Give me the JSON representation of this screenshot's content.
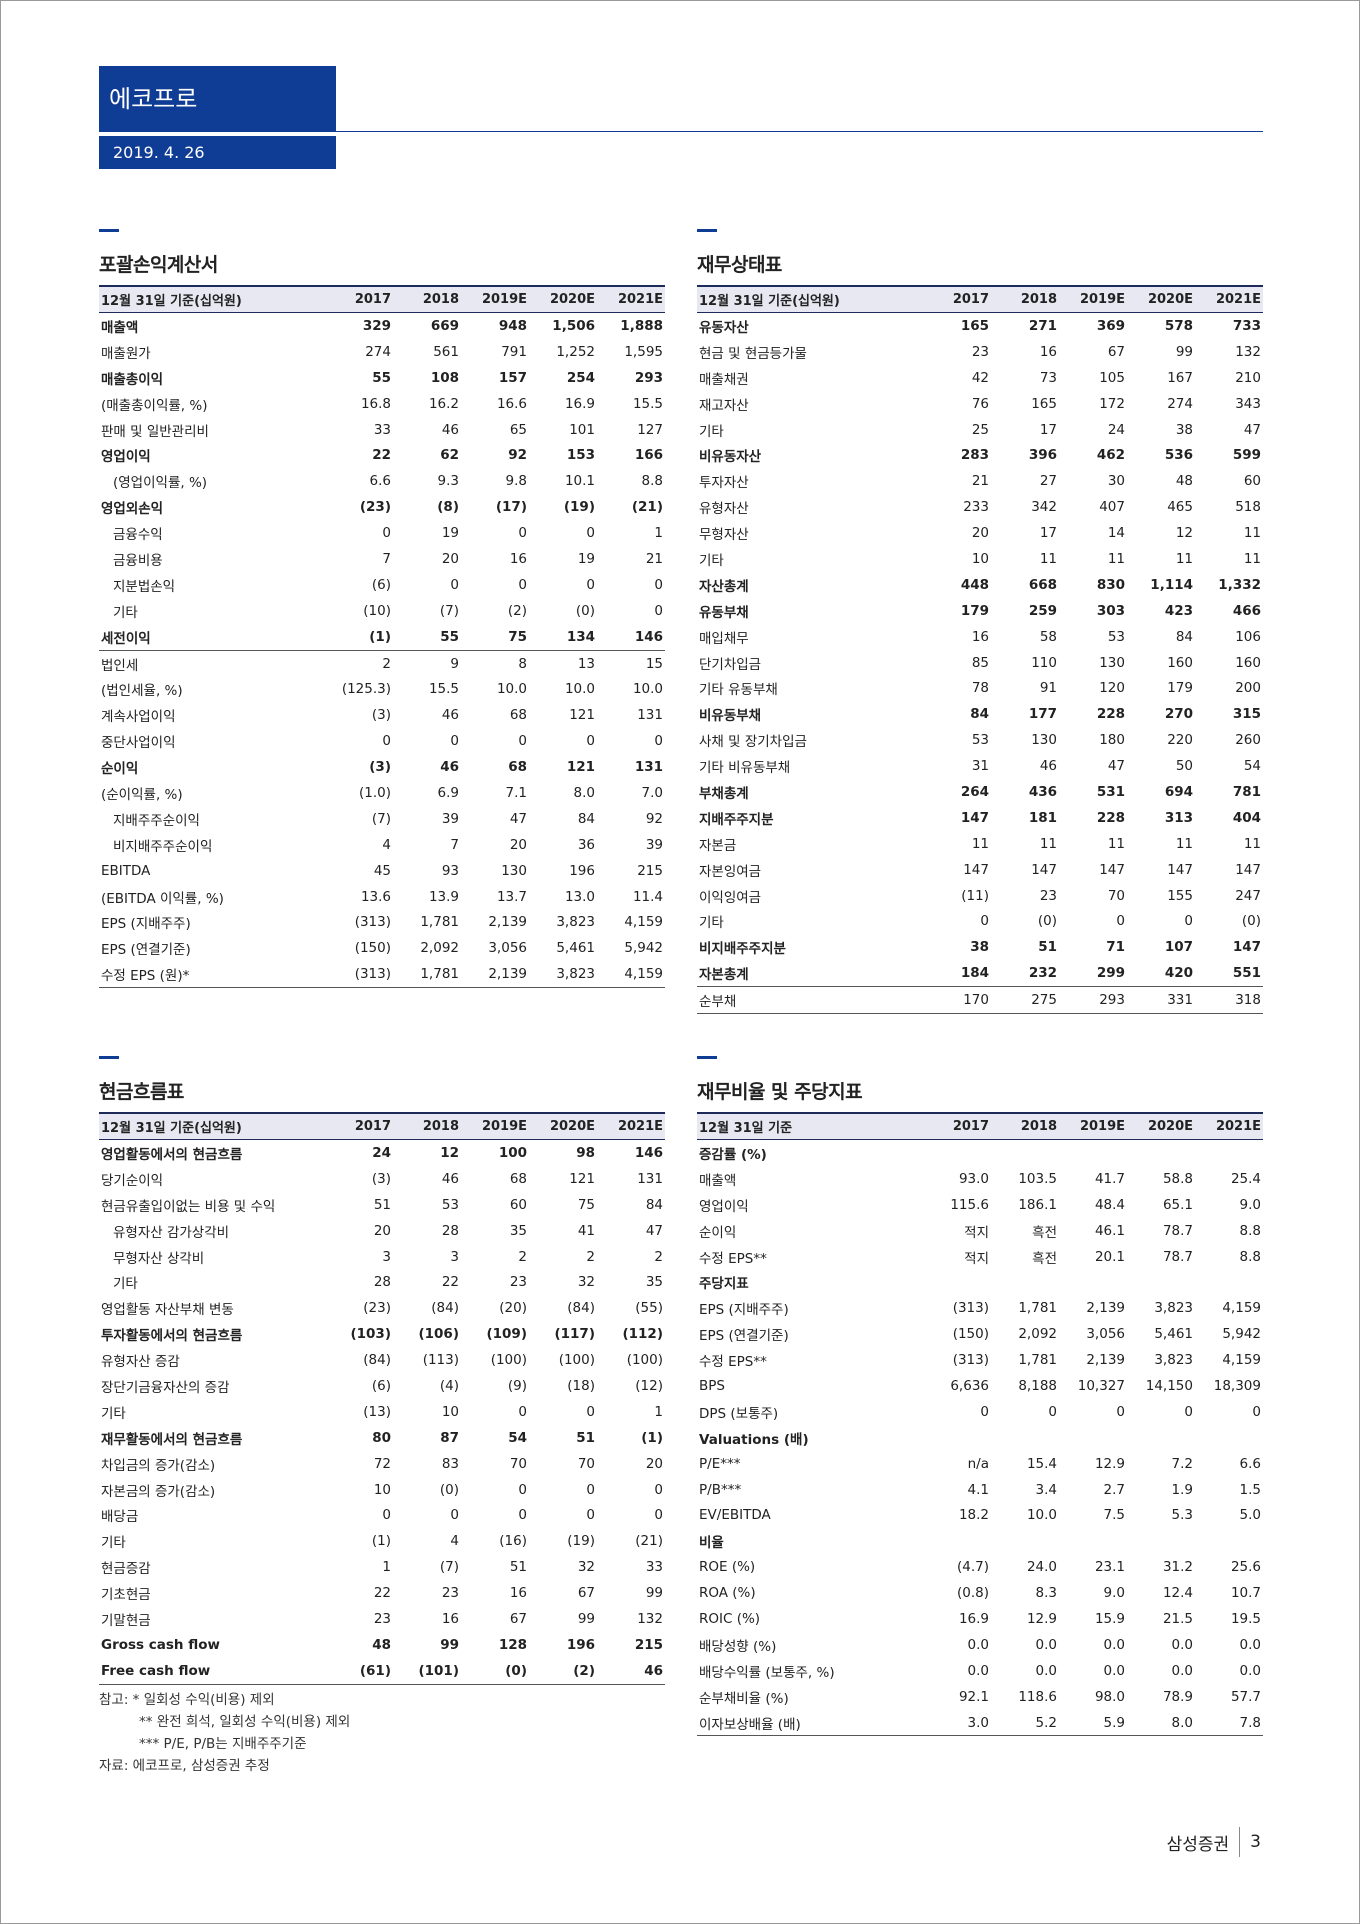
{
  "header": {
    "title": "에코프로",
    "date": "2019. 4. 26"
  },
  "tables": [
    {
      "title": "포괄손익계산서",
      "columns": [
        "12월 31일 기준(십억원)",
        "2017",
        "2018",
        "2019E",
        "2020E",
        "2021E"
      ],
      "rows": [
        {
          "label": "매출액",
          "values": [
            "329",
            "669",
            "948",
            "1,506",
            "1,888"
          ],
          "bold": true
        },
        {
          "label": "매출원가",
          "values": [
            "274",
            "561",
            "791",
            "1,252",
            "1,595"
          ]
        },
        {
          "label": "매출총이익",
          "values": [
            "55",
            "108",
            "157",
            "254",
            "293"
          ],
          "bold": true
        },
        {
          "label": "(매출총이익률, %)",
          "values": [
            "16.8",
            "16.2",
            "16.6",
            "16.9",
            "15.5"
          ]
        },
        {
          "label": "판매 및 일반관리비",
          "values": [
            "33",
            "46",
            "65",
            "101",
            "127"
          ]
        },
        {
          "label": "영업이익",
          "values": [
            "22",
            "62",
            "92",
            "153",
            "166"
          ],
          "bold": true
        },
        {
          "label": "(영업이익률, %)",
          "values": [
            "6.6",
            "9.3",
            "9.8",
            "10.1",
            "8.8"
          ],
          "indent": true
        },
        {
          "label": "영업외손익",
          "values": [
            "(23)",
            "(8)",
            "(17)",
            "(19)",
            "(21)"
          ],
          "bold": true
        },
        {
          "label": "금융수익",
          "values": [
            "0",
            "19",
            "0",
            "0",
            "1"
          ],
          "indent": true
        },
        {
          "label": "금융비용",
          "values": [
            "7",
            "20",
            "16",
            "19",
            "21"
          ],
          "indent": true
        },
        {
          "label": "지분법손익",
          "values": [
            "(6)",
            "0",
            "0",
            "0",
            "0"
          ],
          "indent": true
        },
        {
          "label": "기타",
          "values": [
            "(10)",
            "(7)",
            "(2)",
            "(0)",
            "0"
          ],
          "indent": true
        },
        {
          "label": "세전이익",
          "values": [
            "(1)",
            "55",
            "75",
            "134",
            "146"
          ],
          "bold": true
        },
        {
          "label": "법인세",
          "values": [
            "2",
            "9",
            "8",
            "13",
            "15"
          ],
          "rule": true
        },
        {
          "label": "(법인세율, %)",
          "values": [
            "(125.3)",
            "15.5",
            "10.0",
            "10.0",
            "10.0"
          ]
        },
        {
          "label": "계속사업이익",
          "values": [
            "(3)",
            "46",
            "68",
            "121",
            "131"
          ]
        },
        {
          "label": "중단사업이익",
          "values": [
            "0",
            "0",
            "0",
            "0",
            "0"
          ]
        },
        {
          "label": "순이익",
          "values": [
            "(3)",
            "46",
            "68",
            "121",
            "131"
          ],
          "bold": true
        },
        {
          "label": "(순이익률, %)",
          "values": [
            "(1.0)",
            "6.9",
            "7.1",
            "8.0",
            "7.0"
          ]
        },
        {
          "label": "지배주주순이익",
          "values": [
            "(7)",
            "39",
            "47",
            "84",
            "92"
          ],
          "indent": true
        },
        {
          "label": "비지배주주순이익",
          "values": [
            "4",
            "7",
            "20",
            "36",
            "39"
          ],
          "indent": true
        },
        {
          "label": "EBITDA",
          "values": [
            "45",
            "93",
            "130",
            "196",
            "215"
          ]
        },
        {
          "label": "(EBITDA 이익률, %)",
          "values": [
            "13.6",
            "13.9",
            "13.7",
            "13.0",
            "11.4"
          ]
        },
        {
          "label": "EPS (지배주주)",
          "values": [
            "(313)",
            "1,781",
            "2,139",
            "3,823",
            "4,159"
          ]
        },
        {
          "label": "EPS (연결기준)",
          "values": [
            "(150)",
            "2,092",
            "3,056",
            "5,461",
            "5,942"
          ]
        },
        {
          "label": "수정 EPS (원)*",
          "values": [
            "(313)",
            "1,781",
            "2,139",
            "3,823",
            "4,159"
          ]
        }
      ]
    },
    {
      "title": "재무상태표",
      "columns": [
        "12월 31일 기준(십억원)",
        "2017",
        "2018",
        "2019E",
        "2020E",
        "2021E"
      ],
      "rows": [
        {
          "label": "유동자산",
          "values": [
            "165",
            "271",
            "369",
            "578",
            "733"
          ],
          "bold": true
        },
        {
          "label": "현금 및 현금등가물",
          "values": [
            "23",
            "16",
            "67",
            "99",
            "132"
          ]
        },
        {
          "label": "매출채권",
          "values": [
            "42",
            "73",
            "105",
            "167",
            "210"
          ]
        },
        {
          "label": "재고자산",
          "values": [
            "76",
            "165",
            "172",
            "274",
            "343"
          ]
        },
        {
          "label": "기타",
          "values": [
            "25",
            "17",
            "24",
            "38",
            "47"
          ]
        },
        {
          "label": "비유동자산",
          "values": [
            "283",
            "396",
            "462",
            "536",
            "599"
          ],
          "bold": true
        },
        {
          "label": "투자자산",
          "values": [
            "21",
            "27",
            "30",
            "48",
            "60"
          ]
        },
        {
          "label": "유형자산",
          "values": [
            "233",
            "342",
            "407",
            "465",
            "518"
          ]
        },
        {
          "label": "무형자산",
          "values": [
            "20",
            "17",
            "14",
            "12",
            "11"
          ]
        },
        {
          "label": "기타",
          "values": [
            "10",
            "11",
            "11",
            "11",
            "11"
          ]
        },
        {
          "label": "자산총계",
          "values": [
            "448",
            "668",
            "830",
            "1,114",
            "1,332"
          ],
          "bold": true
        },
        {
          "label": "유동부채",
          "values": [
            "179",
            "259",
            "303",
            "423",
            "466"
          ],
          "bold": true
        },
        {
          "label": "매입채무",
          "values": [
            "16",
            "58",
            "53",
            "84",
            "106"
          ]
        },
        {
          "label": "단기차입금",
          "values": [
            "85",
            "110",
            "130",
            "160",
            "160"
          ]
        },
        {
          "label": "기타 유동부채",
          "values": [
            "78",
            "91",
            "120",
            "179",
            "200"
          ]
        },
        {
          "label": "비유동부채",
          "values": [
            "84",
            "177",
            "228",
            "270",
            "315"
          ],
          "bold": true
        },
        {
          "label": "사채 및 장기차입금",
          "values": [
            "53",
            "130",
            "180",
            "220",
            "260"
          ]
        },
        {
          "label": "기타 비유동부채",
          "values": [
            "31",
            "46",
            "47",
            "50",
            "54"
          ]
        },
        {
          "label": "부채총계",
          "values": [
            "264",
            "436",
            "531",
            "694",
            "781"
          ],
          "bold": true
        },
        {
          "label": "지배주주지분",
          "values": [
            "147",
            "181",
            "228",
            "313",
            "404"
          ],
          "bold": true
        },
        {
          "label": "자본금",
          "values": [
            "11",
            "11",
            "11",
            "11",
            "11"
          ]
        },
        {
          "label": "자본잉여금",
          "values": [
            "147",
            "147",
            "147",
            "147",
            "147"
          ]
        },
        {
          "label": "이익잉여금",
          "values": [
            "(11)",
            "23",
            "70",
            "155",
            "247"
          ]
        },
        {
          "label": "기타",
          "values": [
            "0",
            "(0)",
            "0",
            "0",
            "(0)"
          ]
        },
        {
          "label": "비지배주주지분",
          "values": [
            "38",
            "51",
            "71",
            "107",
            "147"
          ],
          "bold": true
        },
        {
          "label": "자본총계",
          "values": [
            "184",
            "232",
            "299",
            "420",
            "551"
          ],
          "bold": true
        },
        {
          "label": "순부채",
          "values": [
            "170",
            "275",
            "293",
            "331",
            "318"
          ],
          "rule": true
        }
      ]
    },
    {
      "title": "현금흐름표",
      "columns": [
        "12월 31일 기준(십억원)",
        "2017",
        "2018",
        "2019E",
        "2020E",
        "2021E"
      ],
      "rows": [
        {
          "label": "영업활동에서의 현금흐름",
          "values": [
            "24",
            "12",
            "100",
            "98",
            "146"
          ],
          "bold": true
        },
        {
          "label": "당기순이익",
          "values": [
            "(3)",
            "46",
            "68",
            "121",
            "131"
          ]
        },
        {
          "label": "현금유출입이없는 비용 및 수익",
          "values": [
            "51",
            "53",
            "60",
            "75",
            "84"
          ]
        },
        {
          "label": "유형자산 감가상각비",
          "values": [
            "20",
            "28",
            "35",
            "41",
            "47"
          ],
          "indent": true
        },
        {
          "label": "무형자산 상각비",
          "values": [
            "3",
            "3",
            "2",
            "2",
            "2"
          ],
          "indent": true
        },
        {
          "label": "기타",
          "values": [
            "28",
            "22",
            "23",
            "32",
            "35"
          ],
          "indent": true
        },
        {
          "label": "영업활동 자산부채 변동",
          "values": [
            "(23)",
            "(84)",
            "(20)",
            "(84)",
            "(55)"
          ]
        },
        {
          "label": "투자활동에서의 현금흐름",
          "values": [
            "(103)",
            "(106)",
            "(109)",
            "(117)",
            "(112)"
          ],
          "bold": true
        },
        {
          "label": "유형자산 증감",
          "values": [
            "(84)",
            "(113)",
            "(100)",
            "(100)",
            "(100)"
          ]
        },
        {
          "label": "장단기금융자산의 증감",
          "values": [
            "(6)",
            "(4)",
            "(9)",
            "(18)",
            "(12)"
          ]
        },
        {
          "label": "기타",
          "values": [
            "(13)",
            "10",
            "0",
            "0",
            "1"
          ]
        },
        {
          "label": "재무활동에서의 현금흐름",
          "values": [
            "80",
            "87",
            "54",
            "51",
            "(1)"
          ],
          "bold": true
        },
        {
          "label": "차입금의 증가(감소)",
          "values": [
            "72",
            "83",
            "70",
            "70",
            "20"
          ]
        },
        {
          "label": "자본금의 증가(감소)",
          "values": [
            "10",
            "(0)",
            "0",
            "0",
            "0"
          ]
        },
        {
          "label": "배당금",
          "values": [
            "0",
            "0",
            "0",
            "0",
            "0"
          ]
        },
        {
          "label": "기타",
          "values": [
            "(1)",
            "4",
            "(16)",
            "(19)",
            "(21)"
          ]
        },
        {
          "label": "현금증감",
          "values": [
            "1",
            "(7)",
            "51",
            "32",
            "33"
          ]
        },
        {
          "label": "기초현금",
          "values": [
            "22",
            "23",
            "16",
            "67",
            "99"
          ]
        },
        {
          "label": "기말현금",
          "values": [
            "23",
            "16",
            "67",
            "99",
            "132"
          ]
        },
        {
          "label": "Gross cash flow",
          "values": [
            "48",
            "99",
            "128",
            "196",
            "215"
          ],
          "bold": true
        },
        {
          "label": "Free cash flow",
          "values": [
            "(61)",
            "(101)",
            "(0)",
            "(2)",
            "46"
          ],
          "bold": true
        }
      ],
      "notes": [
        "참고: * 일회성 수익(비용) 제외",
        "** 완전 희석, 일회성 수익(비용) 제외",
        "*** P/E, P/B는 지배주주기준",
        "자료: 에코프로, 삼성증권 추정"
      ]
    },
    {
      "title": "재무비율 및 주당지표",
      "columns": [
        "12월 31일 기준",
        "2017",
        "2018",
        "2019E",
        "2020E",
        "2021E"
      ],
      "rows": [
        {
          "label": "증감률 (%)",
          "bold": true
        },
        {
          "label": "매출액",
          "values": [
            "93.0",
            "103.5",
            "41.7",
            "58.8",
            "25.4"
          ]
        },
        {
          "label": "영업이익",
          "values": [
            "115.6",
            "186.1",
            "48.4",
            "65.1",
            "9.0"
          ]
        },
        {
          "label": "순이익",
          "values": [
            "적지",
            "흑전",
            "46.1",
            "78.7",
            "8.8"
          ]
        },
        {
          "label": "수정 EPS**",
          "values": [
            "적지",
            "흑전",
            "20.1",
            "78.7",
            "8.8"
          ]
        },
        {
          "label": "주당지표",
          "bold": true
        },
        {
          "label": "EPS (지배주주)",
          "values": [
            "(313)",
            "1,781",
            "2,139",
            "3,823",
            "4,159"
          ]
        },
        {
          "label": "EPS (연결기준)",
          "values": [
            "(150)",
            "2,092",
            "3,056",
            "5,461",
            "5,942"
          ]
        },
        {
          "label": "수정 EPS**",
          "values": [
            "(313)",
            "1,781",
            "2,139",
            "3,823",
            "4,159"
          ]
        },
        {
          "label": "BPS",
          "values": [
            "6,636",
            "8,188",
            "10,327",
            "14,150",
            "18,309"
          ]
        },
        {
          "label": "DPS (보통주)",
          "values": [
            "0",
            "0",
            "0",
            "0",
            "0"
          ]
        },
        {
          "label": "Valuations (배)",
          "bold": true
        },
        {
          "label": "P/E***",
          "values": [
            "n/a",
            "15.4",
            "12.9",
            "7.2",
            "6.6"
          ]
        },
        {
          "label": "P/B***",
          "values": [
            "4.1",
            "3.4",
            "2.7",
            "1.9",
            "1.5"
          ]
        },
        {
          "label": "EV/EBITDA",
          "values": [
            "18.2",
            "10.0",
            "7.5",
            "5.3",
            "5.0"
          ]
        },
        {
          "label": "비율",
          "bold": true
        },
        {
          "label": "ROE (%)",
          "values": [
            "(4.7)",
            "24.0",
            "23.1",
            "31.2",
            "25.6"
          ]
        },
        {
          "label": "ROA (%)",
          "values": [
            "(0.8)",
            "8.3",
            "9.0",
            "12.4",
            "10.7"
          ]
        },
        {
          "label": "ROIC (%)",
          "values": [
            "16.9",
            "12.9",
            "15.9",
            "21.5",
            "19.5"
          ]
        },
        {
          "label": "배당성향 (%)",
          "values": [
            "0.0",
            "0.0",
            "0.0",
            "0.0",
            "0.0"
          ]
        },
        {
          "label": "배당수익률 (보통주, %)",
          "values": [
            "0.0",
            "0.0",
            "0.0",
            "0.0",
            "0.0"
          ]
        },
        {
          "label": "순부채비율 (%)",
          "values": [
            "92.1",
            "118.6",
            "98.0",
            "78.9",
            "57.7"
          ]
        },
        {
          "label": "이자보상배율 (배)",
          "values": [
            "3.0",
            "5.2",
            "5.9",
            "8.0",
            "7.8"
          ]
        }
      ]
    }
  ],
  "footer": {
    "brand": "삼성증권",
    "page": "3"
  }
}
